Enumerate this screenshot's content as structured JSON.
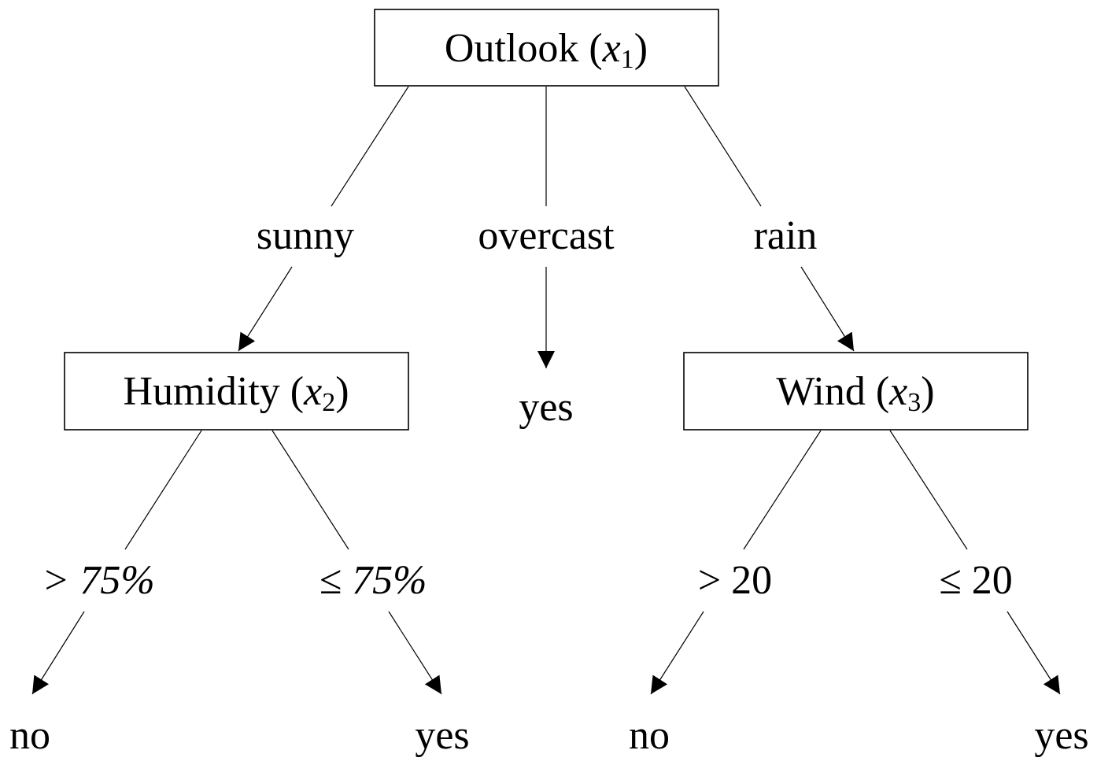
{
  "root": {
    "name": "Outlook",
    "variable": "x",
    "subscript": "1"
  },
  "branches": {
    "sunny": "sunny",
    "overcast": "overcast",
    "rain": "rain"
  },
  "humidity": {
    "name": "Humidity",
    "variable": "x",
    "subscript": "2",
    "branch_high": "> 75%",
    "branch_low": "≤ 75%",
    "leaf_high": "no",
    "leaf_low": "yes"
  },
  "overcast_leaf": "yes",
  "wind": {
    "name": "Wind",
    "variable": "x",
    "subscript": "3",
    "branch_high": "> 20",
    "branch_low": "≤ 20",
    "leaf_high": "no",
    "leaf_low": "yes"
  }
}
